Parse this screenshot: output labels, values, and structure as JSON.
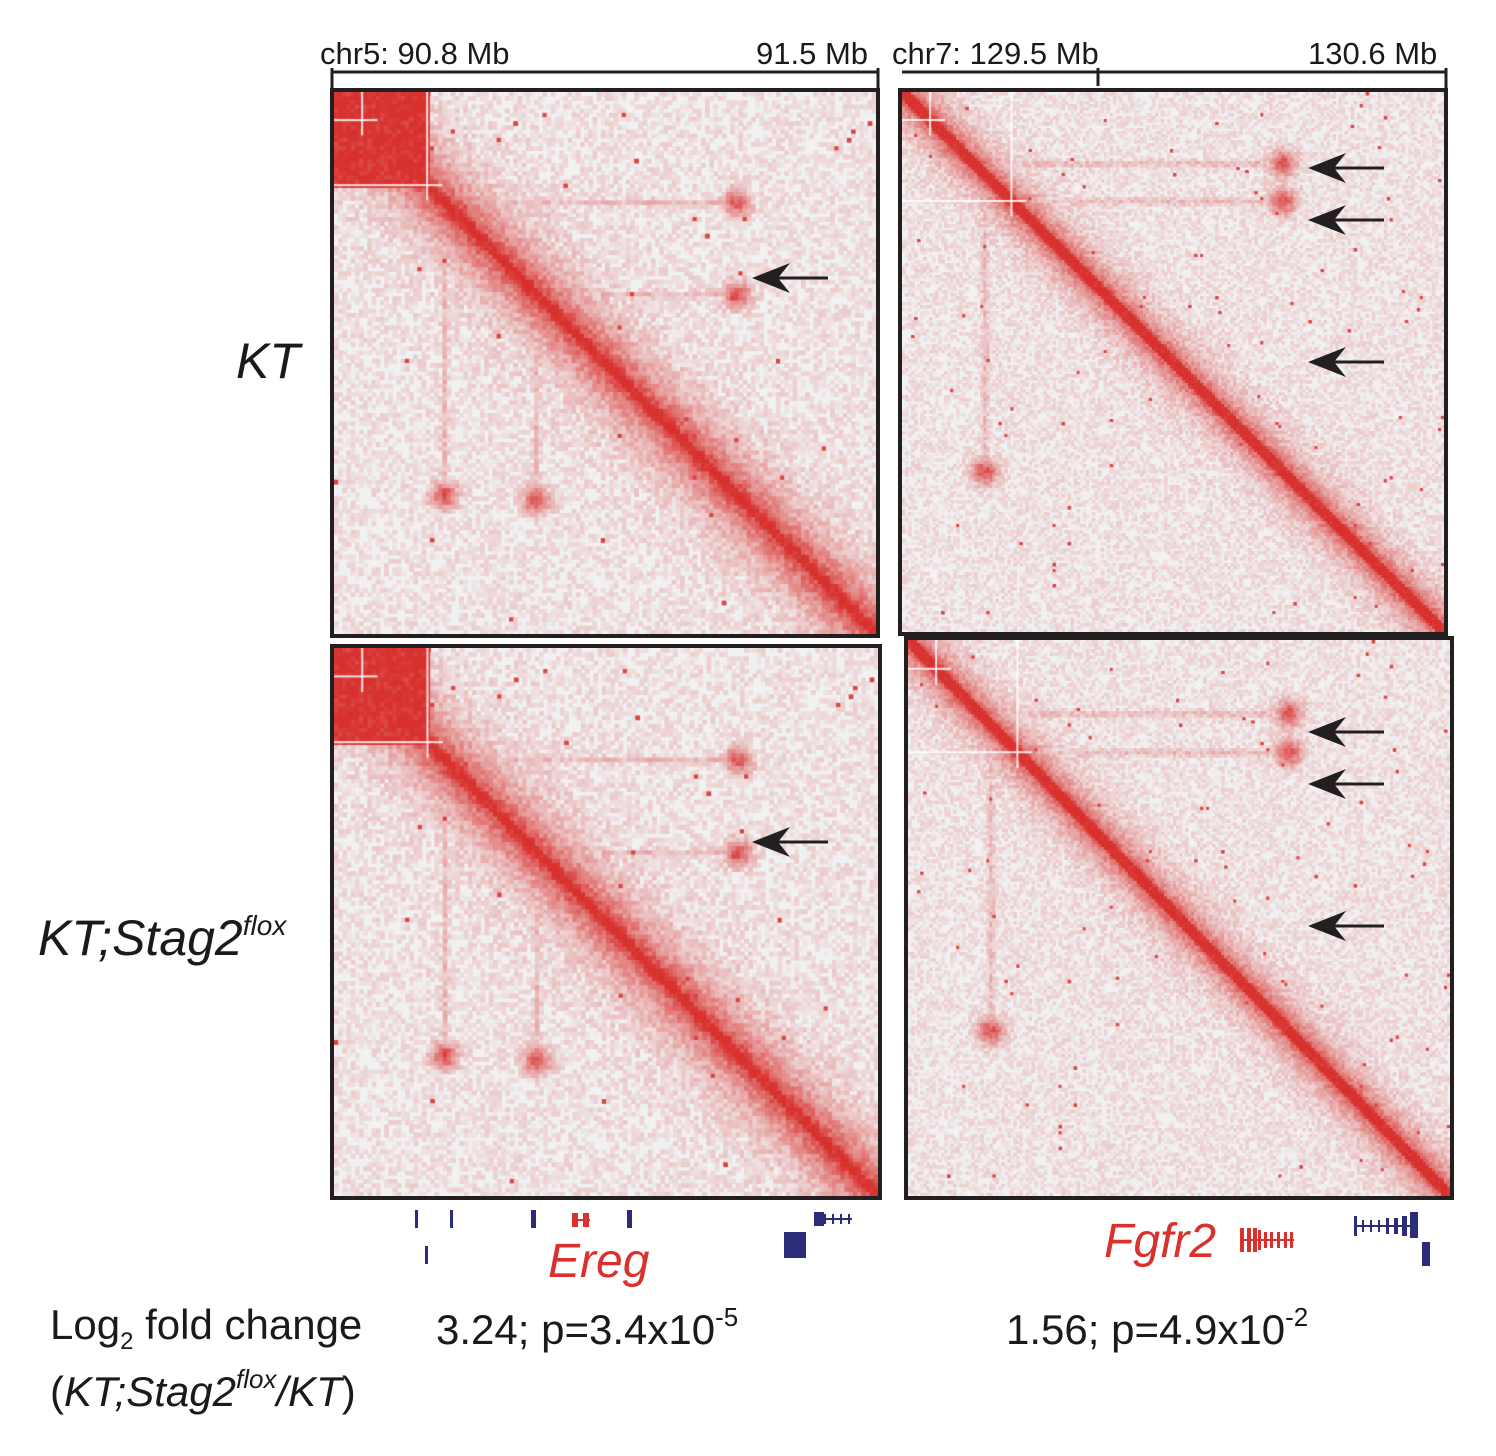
{
  "coordinates": {
    "left_start": "chr5: 90.8 Mb",
    "left_end": "91.5 Mb",
    "right_start": "chr7: 129.5 Mb",
    "right_end": "130.6 Mb"
  },
  "row_labels": {
    "top": "KT",
    "bottom_main": "KT;Stag2",
    "bottom_sup": "flox"
  },
  "genes": {
    "left": "Ereg",
    "right": "Fgfr2"
  },
  "stats": {
    "label_line1_a": "Log",
    "label_line1_sub": "2",
    "label_line1_b": " fold change",
    "label_line2_open": "(",
    "label_line2_a": "KT;Stag2",
    "label_line2_sup": "flox",
    "label_line2_b": "/KT",
    "label_line2_close": ")",
    "left_value": "3.24; p=3.4x10",
    "left_exp": "-5",
    "right_value": "1.56; p=4.9x10",
    "right_exp": "-2"
  },
  "colors": {
    "contact_red": "#d8312e",
    "gene_blue": "#2b2d7a",
    "background_grey": "#f1f1f2",
    "frame": "#231f20"
  },
  "heatmap_features": {
    "ereg": {
      "tad_corners": [
        [
          0.17,
          0.17
        ],
        [
          0.37,
          0.75
        ],
        [
          0.74,
          0.37
        ],
        [
          0.2,
          0.74
        ],
        [
          0.74,
          0.2
        ]
      ],
      "highlighted_loop": [
        0.74,
        0.37
      ]
    },
    "fgfr2": {
      "tad_corners": [
        [
          0.13,
          0.13
        ],
        [
          0.7,
          0.13
        ],
        [
          0.7,
          0.2
        ],
        [
          0.15,
          0.7
        ],
        [
          0.78,
          0.78
        ]
      ],
      "highlighted_loops": [
        [
          0.7,
          0.13
        ],
        [
          0.7,
          0.2
        ],
        [
          0.78,
          0.78
        ]
      ]
    }
  }
}
